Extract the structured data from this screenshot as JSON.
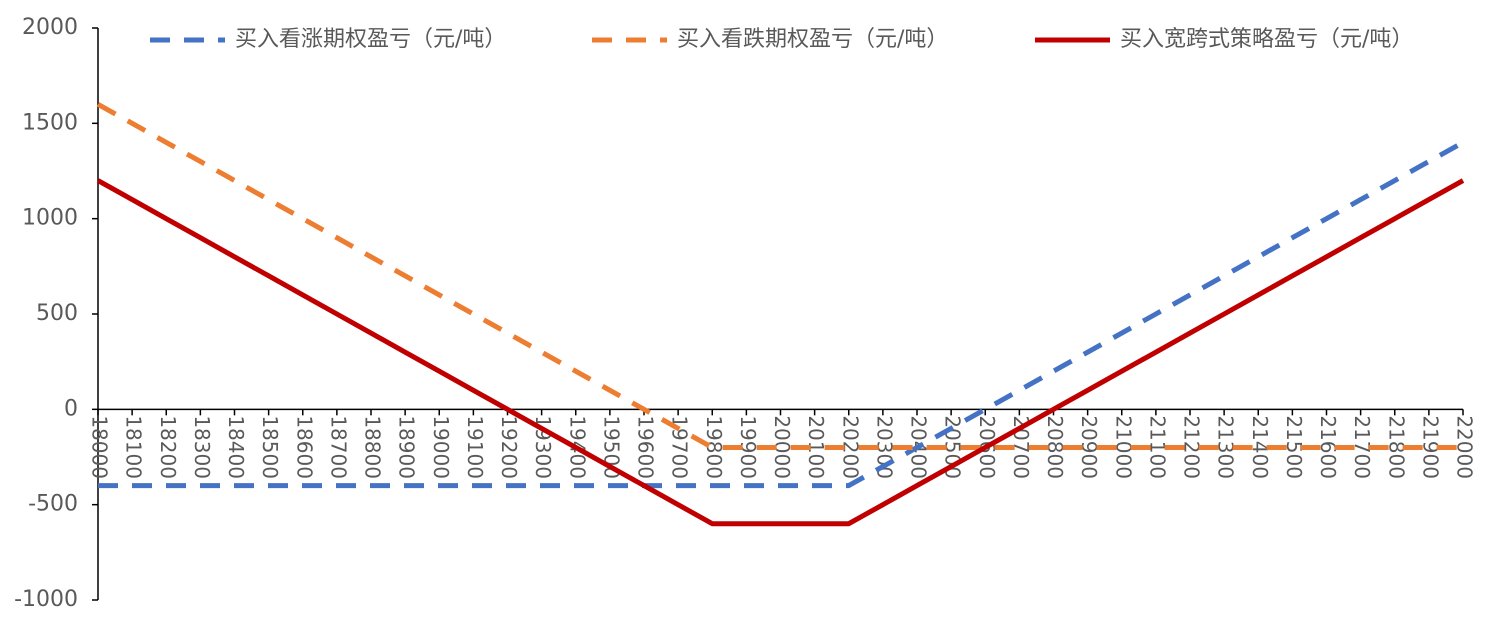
{
  "chart_data": {
    "type": "line",
    "x": [
      18000,
      18100,
      18200,
      18300,
      18400,
      18500,
      18600,
      18700,
      18800,
      18900,
      19000,
      19100,
      19200,
      19300,
      19400,
      19500,
      19600,
      19700,
      19800,
      19900,
      20000,
      20100,
      20200,
      20300,
      20400,
      20500,
      20600,
      20700,
      20800,
      20900,
      21000,
      21100,
      21200,
      21300,
      21400,
      21500,
      21600,
      21700,
      21800,
      21900,
      22000
    ],
    "xlim": [
      18000,
      22000
    ],
    "xticks": [
      18000,
      18100,
      18200,
      18300,
      18400,
      18500,
      18600,
      18700,
      18800,
      18900,
      19000,
      19100,
      19200,
      19300,
      19400,
      19500,
      19600,
      19700,
      19800,
      19900,
      20000,
      20100,
      20200,
      20300,
      20400,
      20500,
      20600,
      20700,
      20800,
      20900,
      21000,
      21100,
      21200,
      21300,
      21400,
      21500,
      21600,
      21700,
      21800,
      21900,
      22000
    ],
    "ylim": [
      -1000,
      2000
    ],
    "yticks": [
      -1000,
      -500,
      0,
      500,
      1000,
      1500,
      2000
    ],
    "legend": "top",
    "series": [
      {
        "name": "买入看涨期权盈亏（元/吨）",
        "color": "#4472c4",
        "style": "dashed",
        "values": [
          -400,
          -400,
          -400,
          -400,
          -400,
          -400,
          -400,
          -400,
          -400,
          -400,
          -400,
          -400,
          -400,
          -400,
          -400,
          -400,
          -400,
          -400,
          -400,
          -400,
          -400,
          -400,
          -400,
          -300,
          -200,
          -100,
          0,
          100,
          200,
          300,
          400,
          500,
          600,
          700,
          800,
          900,
          1000,
          1100,
          1200,
          1300,
          1400
        ]
      },
      {
        "name": "买入看跌期权盈亏（元/吨）",
        "color": "#ed7d31",
        "style": "dashed",
        "values": [
          1600,
          1500,
          1400,
          1300,
          1200,
          1100,
          1000,
          900,
          800,
          700,
          600,
          500,
          400,
          300,
          200,
          100,
          0,
          -100,
          -200,
          -200,
          -200,
          -200,
          -200,
          -200,
          -200,
          -200,
          -200,
          -200,
          -200,
          -200,
          -200,
          -200,
          -200,
          -200,
          -200,
          -200,
          -200,
          -200,
          -200,
          -200,
          -200
        ]
      },
      {
        "name": "买入宽跨式策略盈亏（元/吨）",
        "color": "#c00000",
        "style": "solid",
        "values": [
          1200,
          1100,
          1000,
          900,
          800,
          700,
          600,
          500,
          400,
          300,
          200,
          100,
          0,
          -100,
          -200,
          -300,
          -400,
          -500,
          -600,
          -600,
          -600,
          -600,
          -600,
          -500,
          -400,
          -300,
          -200,
          -100,
          0,
          100,
          200,
          300,
          400,
          500,
          600,
          700,
          800,
          900,
          1000,
          1100,
          1200
        ]
      }
    ]
  }
}
